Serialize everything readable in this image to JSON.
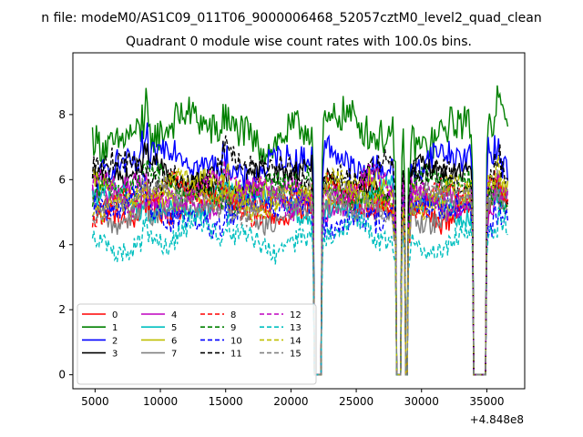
{
  "chart_data": {
    "type": "line",
    "suptitle": "n file: modeM0/AS1C09_011T06_9000006468_52057cztM0_level2_quad_clean",
    "title": "Quadrant 0 module wise count rates with 100.0s bins.",
    "xlabel": "",
    "ylabel": "",
    "xlim": [
      3300,
      37900
    ],
    "ylim": [
      -0.43,
      9.9
    ],
    "x_offset_label": "+4.848e8",
    "xticks": [
      5000,
      10000,
      15000,
      20000,
      25000,
      30000,
      35000
    ],
    "yticks": [
      0,
      2,
      4,
      6,
      8
    ],
    "grid": false,
    "legend_position": "lower-left",
    "legend_columns": 4,
    "x_start": 4800,
    "x_end": 36600,
    "bin_width": 100,
    "gaps": [
      [
        21800,
        22300
      ],
      [
        28050,
        28400
      ],
      [
        28800,
        28950
      ],
      [
        34000,
        34900
      ]
    ],
    "series": [
      {
        "name": "0",
        "color": "#ff0000",
        "style": "solid",
        "base": 5.2,
        "noise": 0.35
      },
      {
        "name": "1",
        "color": "#008000",
        "style": "solid",
        "base": 7.5,
        "noise": 0.55
      },
      {
        "name": "2",
        "color": "#0000ff",
        "style": "solid",
        "base": 6.5,
        "noise": 0.45
      },
      {
        "name": "3",
        "color": "#000000",
        "style": "solid",
        "base": 6.0,
        "noise": 0.35
      },
      {
        "name": "4",
        "color": "#bf00bf",
        "style": "solid",
        "base": 5.4,
        "noise": 0.35
      },
      {
        "name": "5",
        "color": "#00bfbf",
        "style": "solid",
        "base": 5.3,
        "noise": 0.35
      },
      {
        "name": "6",
        "color": "#bfbf00",
        "style": "solid",
        "base": 5.6,
        "noise": 0.35
      },
      {
        "name": "7",
        "color": "#808080",
        "style": "solid",
        "base": 5.1,
        "noise": 0.35
      },
      {
        "name": "8",
        "color": "#ff0000",
        "style": "dashed",
        "base": 5.4,
        "noise": 0.35
      },
      {
        "name": "9",
        "color": "#008000",
        "style": "dashed",
        "base": 5.7,
        "noise": 0.35
      },
      {
        "name": "10",
        "color": "#0000ff",
        "style": "dashed",
        "base": 5.0,
        "noise": 0.4
      },
      {
        "name": "11",
        "color": "#000000",
        "style": "dashed",
        "base": 6.2,
        "noise": 0.4
      },
      {
        "name": "12",
        "color": "#bf00bf",
        "style": "dashed",
        "base": 5.6,
        "noise": 0.35
      },
      {
        "name": "13",
        "color": "#00bfbf",
        "style": "dashed",
        "base": 4.2,
        "noise": 0.35
      },
      {
        "name": "14",
        "color": "#bfbf00",
        "style": "dashed",
        "base": 5.5,
        "noise": 0.35
      },
      {
        "name": "15",
        "color": "#808080",
        "style": "dashed",
        "base": 5.3,
        "noise": 0.35
      }
    ]
  }
}
